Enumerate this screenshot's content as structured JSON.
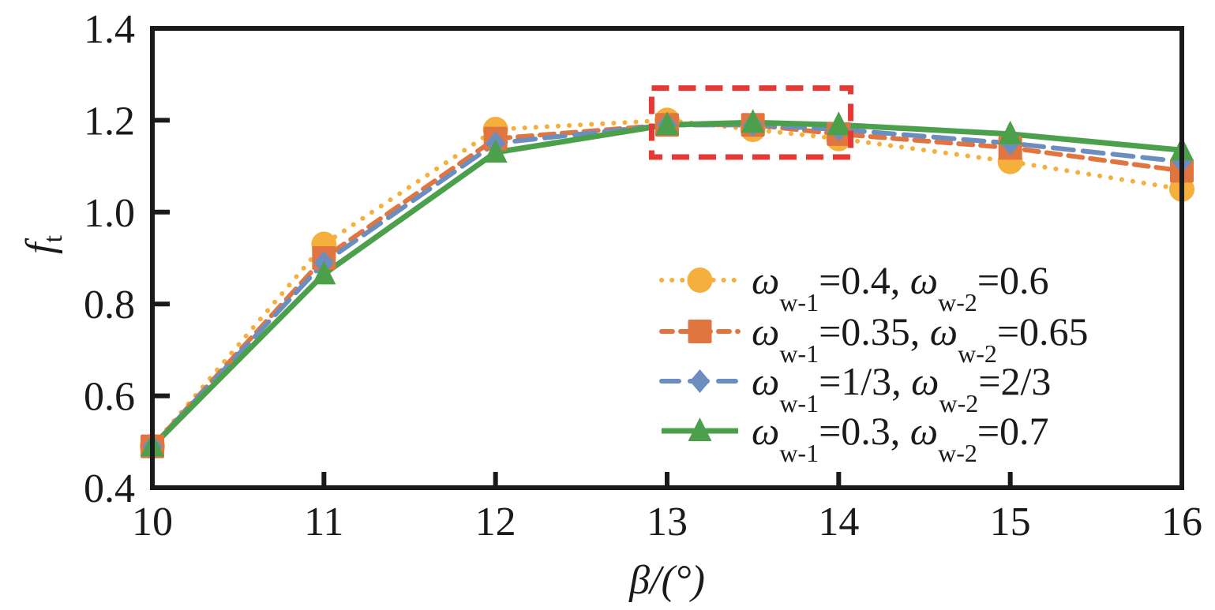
{
  "chart_data": {
    "type": "line",
    "title": "",
    "xlabel": "β/(°)",
    "ylabel": "f_t",
    "ylabel_main": "f",
    "ylabel_sub": "t",
    "xlim": [
      10,
      16
    ],
    "ylim": [
      0.4,
      1.4
    ],
    "x_ticks": [
      10,
      11,
      12,
      13,
      14,
      15,
      16
    ],
    "x_tick_labels": [
      "10",
      "11",
      "12",
      "13",
      "14",
      "15",
      "16"
    ],
    "y_ticks": [
      0.4,
      0.6,
      0.8,
      1.0,
      1.2,
      1.4
    ],
    "y_tick_labels": [
      "0.4",
      "0.6",
      "0.8",
      "1.0",
      "1.2",
      "1.4"
    ],
    "grid": false,
    "legend_position": "bottom-right",
    "x": [
      10,
      11,
      12,
      13,
      13.5,
      14,
      15,
      16
    ],
    "series": [
      {
        "name": "ω_w-1=0.4, ω_w-2=0.6",
        "legend_parts": {
          "w1_sub": "w-1",
          "w1_val": "=0.4, ",
          "w2_sub": "w-2",
          "w2_val": "=0.6"
        },
        "color": "#F4AF3D",
        "line_style": "dotted",
        "marker": "circle",
        "values": [
          0.49,
          0.93,
          1.18,
          1.2,
          1.18,
          1.16,
          1.11,
          1.05
        ]
      },
      {
        "name": "ω_w-1=0.35, ω_w-2=0.65",
        "legend_parts": {
          "w1_sub": "w-1",
          "w1_val": "=0.35, ",
          "w2_sub": "w-2",
          "w2_val": "=0.65"
        },
        "color": "#E17540",
        "line_style": "dashed",
        "marker": "square",
        "values": [
          0.49,
          0.9,
          1.16,
          1.19,
          1.19,
          1.17,
          1.14,
          1.09
        ]
      },
      {
        "name": "ω_w-1=1/3, ω_w-2=2/3",
        "legend_parts": {
          "w1_sub": "w-1",
          "w1_val": "=1/3, ",
          "w2_sub": "w-2",
          "w2_val": "=2/3"
        },
        "color": "#6C8EBF",
        "line_style": "dashed-long",
        "marker": "diamond",
        "values": [
          0.49,
          0.89,
          1.15,
          1.19,
          1.19,
          1.18,
          1.15,
          1.11
        ]
      },
      {
        "name": "ω_w-1=0.3, ω_w-2=0.7",
        "legend_parts": {
          "w1_sub": "w-1",
          "w1_val": "=0.3, ",
          "w2_sub": "w-2",
          "w2_val": "=0.7"
        },
        "color": "#4CA04C",
        "line_style": "solid",
        "marker": "triangle",
        "values": [
          0.49,
          0.865,
          1.13,
          1.19,
          1.195,
          1.19,
          1.17,
          1.135
        ]
      }
    ],
    "annotations": [
      {
        "type": "dashed-rectangle",
        "color": "#E53935",
        "x_range": [
          12.91,
          14.07
        ],
        "y_range": [
          1.12,
          1.27
        ],
        "meaning": "highlighted optimum region"
      }
    ]
  }
}
